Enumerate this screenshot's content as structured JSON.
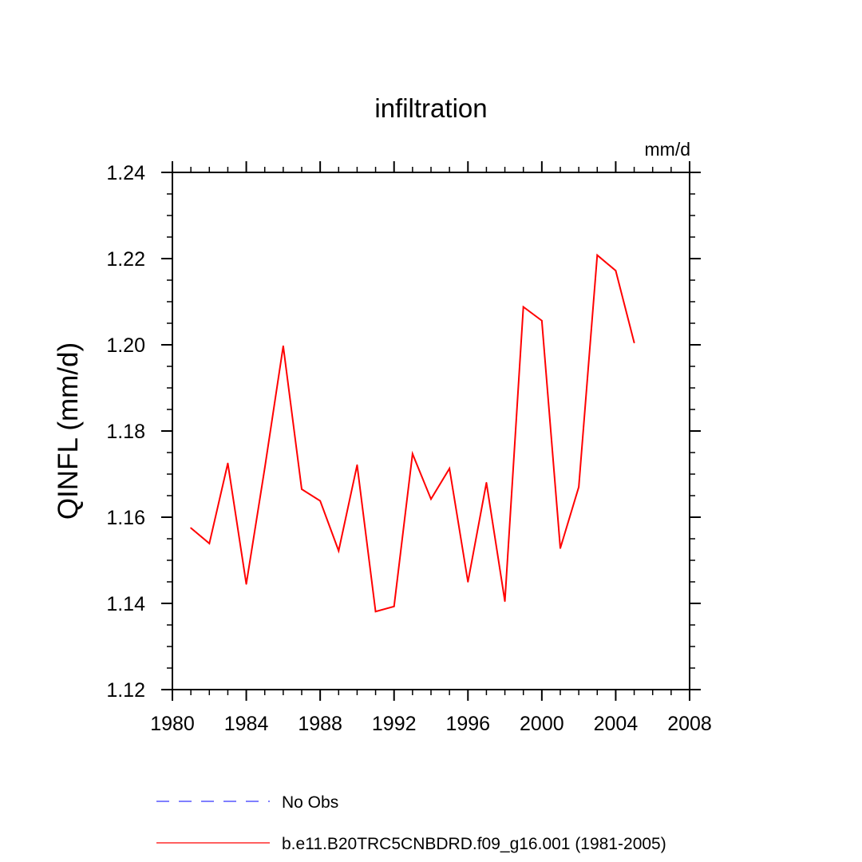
{
  "chart_data": {
    "type": "line",
    "title": "infiltration",
    "units_label": "mm/d",
    "xlabel": "",
    "ylabel": "QINFL  (mm/d)",
    "xlim": [
      1980,
      2008
    ],
    "ylim": [
      1.12,
      1.24
    ],
    "x_ticks": [
      1980,
      1984,
      1988,
      1992,
      1996,
      2000,
      2004,
      2008
    ],
    "x_tick_labels": [
      "1980",
      "1984",
      "1988",
      "1992",
      "1996",
      "2000",
      "2004",
      "2008"
    ],
    "y_ticks": [
      1.12,
      1.14,
      1.16,
      1.18,
      1.2,
      1.22,
      1.24
    ],
    "y_tick_labels": [
      "1.12",
      "1.14",
      "1.16",
      "1.18",
      "1.20",
      "1.22",
      "1.24"
    ],
    "grid": false,
    "legend_position": "bottom",
    "series": [
      {
        "name": "No Obs",
        "color": "#3333ff",
        "dash": "dashed",
        "x": [],
        "values": []
      },
      {
        "name": "b.e11.B20TRC5CNBDRD.f09_g16.001 (1981-2005)",
        "color": "#ff0000",
        "dash": "solid",
        "x": [
          1981,
          1982,
          1983,
          1984,
          1985,
          1986,
          1987,
          1988,
          1989,
          1990,
          1991,
          1992,
          1993,
          1994,
          1995,
          1996,
          1997,
          1998,
          1999,
          2000,
          2001,
          2002,
          2003,
          2004,
          2005
        ],
        "values": [
          1.1575,
          1.1539,
          1.1725,
          1.1445,
          1.1714,
          1.1997,
          1.1665,
          1.1638,
          1.1522,
          1.1721,
          1.1381,
          1.1393,
          1.1747,
          1.1642,
          1.1713,
          1.145,
          1.168,
          1.1405,
          1.2088,
          1.2056,
          1.1528,
          1.167,
          1.2208,
          1.2172,
          1.2005
        ]
      }
    ]
  }
}
